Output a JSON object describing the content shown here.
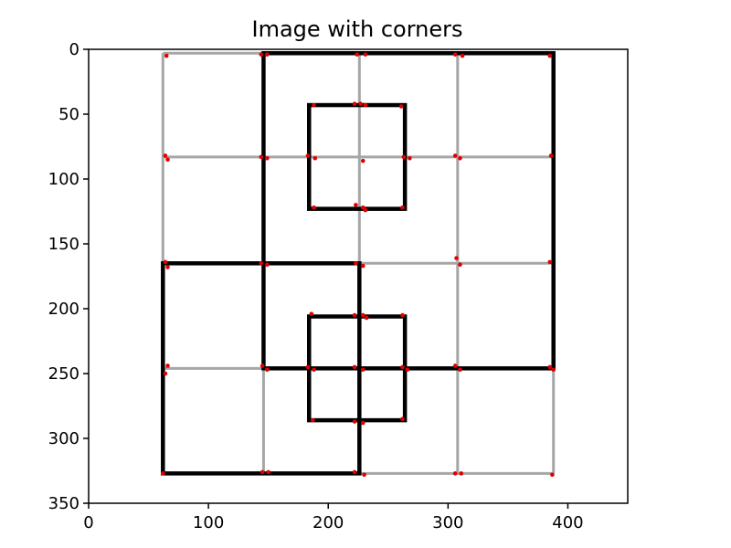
{
  "chart_data": {
    "type": "image",
    "title": "Image with corners",
    "xlim": [
      0,
      450
    ],
    "ylim": [
      350,
      0
    ],
    "y_inverted": true,
    "xticks": [
      0,
      100,
      200,
      300,
      400
    ],
    "yticks": [
      0,
      50,
      100,
      150,
      200,
      250,
      300,
      350
    ],
    "colors": {
      "thin_line": "#a6a6a6",
      "thick_line": "#000000",
      "corner": "#e00000"
    },
    "thin_lines": [
      {
        "x1": 62,
        "y1": 3,
        "x2": 62,
        "y2": 327
      },
      {
        "x1": 146,
        "y1": 3,
        "x2": 146,
        "y2": 327
      },
      {
        "x1": 226,
        "y1": 3,
        "x2": 226,
        "y2": 327
      },
      {
        "x1": 308,
        "y1": 3,
        "x2": 308,
        "y2": 327
      },
      {
        "x1": 388,
        "y1": 3,
        "x2": 388,
        "y2": 327
      },
      {
        "x1": 62,
        "y1": 3,
        "x2": 388,
        "y2": 3
      },
      {
        "x1": 62,
        "y1": 83,
        "x2": 388,
        "y2": 83
      },
      {
        "x1": 62,
        "y1": 165,
        "x2": 388,
        "y2": 165
      },
      {
        "x1": 62,
        "y1": 246,
        "x2": 388,
        "y2": 246
      },
      {
        "x1": 62,
        "y1": 327,
        "x2": 388,
        "y2": 327
      }
    ],
    "thick_rects": [
      {
        "x": 146,
        "y": 3,
        "w": 242,
        "h": 243
      },
      {
        "x": 184,
        "y": 43,
        "w": 80,
        "h": 80
      },
      {
        "x": 62,
        "y": 165,
        "w": 164,
        "h": 162
      },
      {
        "x": 184,
        "y": 206,
        "w": 80,
        "h": 80
      }
    ],
    "corners": [
      [
        65,
        5
      ],
      [
        144,
        4
      ],
      [
        149,
        4
      ],
      [
        224,
        4
      ],
      [
        231,
        4
      ],
      [
        306,
        4
      ],
      [
        312,
        5
      ],
      [
        385,
        5
      ],
      [
        188,
        43
      ],
      [
        222,
        42
      ],
      [
        227,
        42
      ],
      [
        231,
        43
      ],
      [
        261,
        44
      ],
      [
        64,
        82
      ],
      [
        66,
        85
      ],
      [
        144,
        83
      ],
      [
        149,
        84
      ],
      [
        183,
        82
      ],
      [
        189,
        84
      ],
      [
        229,
        86
      ],
      [
        263,
        83
      ],
      [
        268,
        84
      ],
      [
        306,
        82
      ],
      [
        310,
        84
      ],
      [
        386,
        82
      ],
      [
        188,
        122
      ],
      [
        223,
        120
      ],
      [
        229,
        122
      ],
      [
        231,
        124
      ],
      [
        262,
        122
      ],
      [
        64,
        164
      ],
      [
        66,
        168
      ],
      [
        144,
        165
      ],
      [
        149,
        166
      ],
      [
        223,
        165
      ],
      [
        229,
        167
      ],
      [
        307,
        161
      ],
      [
        310,
        166
      ],
      [
        385,
        164
      ],
      [
        186,
        204
      ],
      [
        222,
        205
      ],
      [
        229,
        205
      ],
      [
        232,
        207
      ],
      [
        262,
        205
      ],
      [
        66,
        244
      ],
      [
        64,
        250
      ],
      [
        145,
        244
      ],
      [
        149,
        247
      ],
      [
        183,
        245
      ],
      [
        188,
        247
      ],
      [
        222,
        245
      ],
      [
        229,
        247
      ],
      [
        262,
        245
      ],
      [
        266,
        247
      ],
      [
        306,
        244
      ],
      [
        310,
        247
      ],
      [
        385,
        245
      ],
      [
        388,
        247
      ],
      [
        187,
        286
      ],
      [
        222,
        287
      ],
      [
        229,
        288
      ],
      [
        262,
        285
      ],
      [
        62,
        327
      ],
      [
        145,
        326
      ],
      [
        150,
        326
      ],
      [
        222,
        326
      ],
      [
        230,
        328
      ],
      [
        306,
        327
      ],
      [
        311,
        327
      ],
      [
        387,
        328
      ]
    ]
  }
}
